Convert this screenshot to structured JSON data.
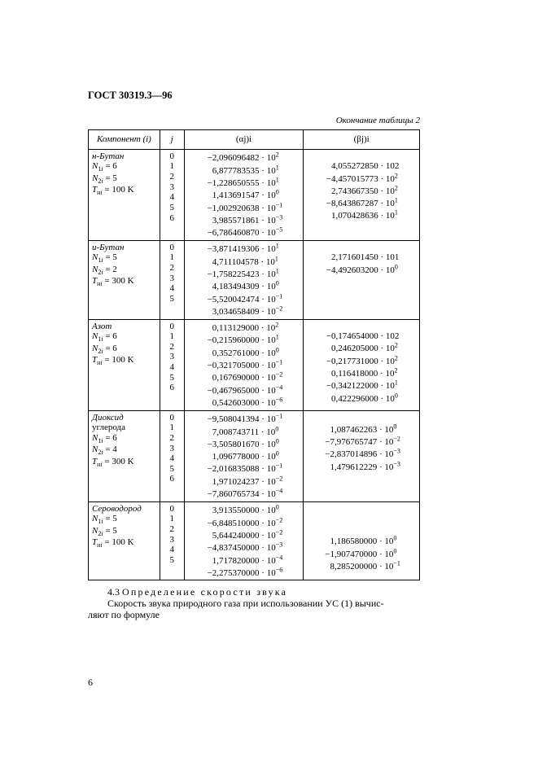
{
  "header": "ГОСТ 30319.3—96",
  "caption": "Окончание таблицы 2",
  "columns": {
    "comp": "Компонент (i)",
    "j": "j",
    "alpha": "(αj)i",
    "beta": "(βj)i"
  },
  "body_text": {
    "sect_num": "4.3",
    "sect_title": "Определение скорости звука",
    "line1": "Скорость звука природного газа при использовании УС (1) вычис-",
    "line2": "ляют по формуле"
  },
  "page_num": "6",
  "rows": [
    {
      "comp": {
        "name": "н-Бутан",
        "N1": "6",
        "N2": "5",
        "Tn": "100"
      },
      "j": [
        "0",
        "1",
        "2",
        "3",
        "4",
        "5",
        "6"
      ],
      "alpha": [
        {
          "s": "−",
          "m": "2,096096482",
          "e": "2"
        },
        {
          "s": "",
          "m": "6,877783535",
          "e": "1"
        },
        {
          "s": "−",
          "m": "1,228650555",
          "e": "1"
        },
        {
          "s": "",
          "m": "1,413691547",
          "e": "0"
        },
        {
          "s": "−",
          "m": "1,002920638",
          "e": "−1"
        },
        {
          "s": "",
          "m": "3,985571861",
          "e": "−3"
        },
        {
          "s": "−",
          "m": "6,786460870",
          "e": "−5"
        }
      ],
      "beta": [
        null,
        {
          "s": "",
          "m": "4,055272850",
          "e": "102",
          "plain": true
        },
        {
          "s": "−",
          "m": "4,457015773",
          "e": "2"
        },
        {
          "s": "",
          "m": "2,743667350",
          "e": "2"
        },
        {
          "s": "−",
          "m": "8,643867287",
          "e": "1"
        },
        {
          "s": "",
          "m": "1,070428636",
          "e": "1"
        },
        null
      ]
    },
    {
      "comp": {
        "name": "и-Бутан",
        "N1": "5",
        "N2": "2",
        "Tn": "300"
      },
      "j": [
        "0",
        "1",
        "2",
        "3",
        "4",
        "5"
      ],
      "alpha": [
        {
          "s": "−",
          "m": "3,871419306",
          "e": "1"
        },
        {
          "s": "",
          "m": "4,711104578",
          "e": "1"
        },
        {
          "s": "−",
          "m": "1,758225423",
          "e": "1"
        },
        {
          "s": "",
          "m": "4,183494309",
          "e": "0"
        },
        {
          "s": "−",
          "m": "5,520042474",
          "e": "−1"
        },
        {
          "s": "",
          "m": "3,034658409",
          "e": "−2"
        }
      ],
      "beta": [
        null,
        {
          "s": "",
          "m": "2,171601450",
          "e": "101",
          "plain": true
        },
        {
          "s": "−",
          "m": "4,492603200",
          "e": "0"
        },
        null,
        null,
        null
      ]
    },
    {
      "comp": {
        "name": "Азот",
        "N1": "6",
        "N2": "6",
        "Tn": "100"
      },
      "j": [
        "0",
        "1",
        "2",
        "3",
        "4",
        "5",
        "6"
      ],
      "alpha": [
        {
          "s": "",
          "m": "0,113129000",
          "e": "2"
        },
        {
          "s": "−",
          "m": "0,215960000",
          "e": "1"
        },
        {
          "s": "",
          "m": "0,352761000",
          "e": "0"
        },
        {
          "s": "−",
          "m": "0,321705000",
          "e": "−1"
        },
        {
          "s": "",
          "m": "0,167690000",
          "e": "−2"
        },
        {
          "s": "−",
          "m": "0,467965000",
          "e": "−4"
        },
        {
          "s": "",
          "m": "0,542603000",
          "e": "−6"
        }
      ],
      "beta": [
        null,
        {
          "s": "−",
          "m": "0,174654000",
          "e": "102",
          "plain": true
        },
        {
          "s": "",
          "m": "0,246205000",
          "e": "2"
        },
        {
          "s": "−",
          "m": "0,217731000",
          "e": "2"
        },
        {
          "s": "",
          "m": "0,116418000",
          "e": "2"
        },
        {
          "s": "−",
          "m": "0,342122000",
          "e": "1"
        },
        {
          "s": "",
          "m": "0,422296000",
          "e": "0"
        }
      ]
    },
    {
      "comp": {
        "name": "Диоксид",
        "name2": "углерода",
        "N1": "6",
        "N2": "4",
        "Tn": "300"
      },
      "j": [
        "0",
        "1",
        "2",
        "3",
        "4",
        "5",
        "6"
      ],
      "alpha": [
        {
          "s": "−",
          "m": "9,508041394",
          "e": "−1"
        },
        {
          "s": "",
          "m": "7,008743711",
          "e": "0"
        },
        {
          "s": "−",
          "m": "3,505801670",
          "e": "0"
        },
        {
          "s": "",
          "m": "1,096778000",
          "e": "0"
        },
        {
          "s": "−",
          "m": "2,016835088",
          "e": "−1"
        },
        {
          "s": "",
          "m": "1,971024237",
          "e": "−2"
        },
        {
          "s": "−",
          "m": "7,860765734",
          "e": "−4"
        }
      ],
      "beta": [
        null,
        {
          "s": "",
          "m": "1,087462263",
          "e": "0"
        },
        {
          "s": "−",
          "m": "7,976765747",
          "e": "−2"
        },
        {
          "s": "−",
          "m": "2,837014896",
          "e": "−3"
        },
        {
          "s": "",
          "m": "1,479612229",
          "e": "−3"
        },
        null,
        null
      ]
    },
    {
      "comp": {
        "name": "Сероводород",
        "N1": "5",
        "N2": "5",
        "Tn": "100"
      },
      "j": [
        "0",
        "1",
        "2",
        "3",
        "4",
        "5"
      ],
      "alpha": [
        {
          "s": "",
          "m": "3,913550000",
          "e": "0"
        },
        {
          "s": "−",
          "m": "6,848510000",
          "e": "−2"
        },
        {
          "s": "",
          "m": "5,644240000",
          "e": "−2"
        },
        {
          "s": "−",
          "m": "4,837450000",
          "e": "−3"
        },
        {
          "s": "",
          "m": "1,717820000",
          "e": "−4"
        },
        {
          "s": "−",
          "m": "2,275370000",
          "e": "−6"
        }
      ],
      "beta": [
        null,
        null,
        null,
        {
          "s": "",
          "m": "1,186580000",
          "e": "0"
        },
        {
          "s": "−",
          "m": "1,907470000",
          "e": "0"
        },
        {
          "s": "",
          "m": "8,285200000",
          "e": "−1"
        }
      ]
    }
  ]
}
